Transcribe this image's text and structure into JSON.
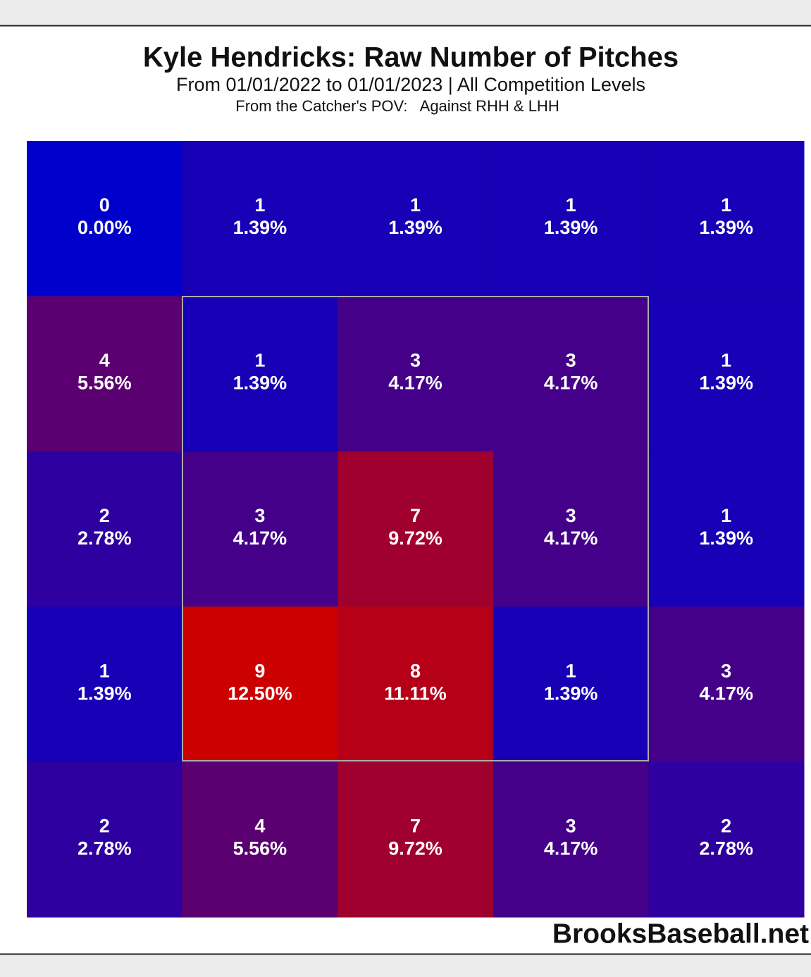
{
  "chart_data": {
    "type": "heatmap",
    "title": "Kyle Hendricks: Raw Number of Pitches",
    "subtitle": "From 01/01/2022 to 01/01/2023 | All Competition Levels",
    "subtitle2": "From the Catcher's POV:   Against RHH & LHH",
    "watermark": "BrooksBaseball.net",
    "values": [
      [
        0,
        1,
        1,
        1,
        1
      ],
      [
        4,
        1,
        3,
        3,
        1
      ],
      [
        2,
        3,
        7,
        3,
        1
      ],
      [
        1,
        9,
        8,
        1,
        3
      ],
      [
        2,
        4,
        7,
        3,
        2
      ]
    ],
    "percents": [
      [
        0,
        1.39,
        1.39,
        1.39,
        1.39
      ],
      [
        5.56,
        1.39,
        4.17,
        4.17,
        1.39
      ],
      [
        2.78,
        4.17,
        9.72,
        4.17,
        1.39
      ],
      [
        1.39,
        12.5,
        11.11,
        1.39,
        4.17
      ],
      [
        2.78,
        5.56,
        9.72,
        4.17,
        2.78
      ]
    ],
    "percent_labels": [
      [
        "0.00%",
        "1.39%",
        "1.39%",
        "1.39%",
        "1.39%"
      ],
      [
        "5.56%",
        "1.39%",
        "4.17%",
        "4.17%",
        "1.39%"
      ],
      [
        "2.78%",
        "4.17%",
        "9.72%",
        "4.17%",
        "1.39%"
      ],
      [
        "1.39%",
        "12.50%",
        "11.11%",
        "1.39%",
        "4.17%"
      ],
      [
        "2.78%",
        "5.56%",
        "9.72%",
        "4.17%",
        "2.78%"
      ]
    ],
    "clim": [
      0,
      9
    ],
    "color_min": "#0000cc",
    "color_max": "#cc0000"
  }
}
